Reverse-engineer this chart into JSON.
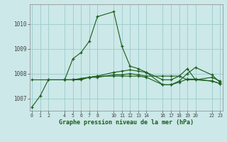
{
  "xlabel": "Graphe pression niveau de la mer (hPa)",
  "bg_color": "#cce8e8",
  "line_color": "#1a5c1a",
  "grid_color": "#99cccc",
  "ylim": [
    1006.5,
    1010.8
  ],
  "xlim": [
    -0.3,
    23.3
  ],
  "yticks": [
    1007,
    1008,
    1009,
    1010
  ],
  "xtick_positions": [
    0,
    1,
    2,
    4,
    5,
    6,
    7,
    8,
    10,
    11,
    12,
    13,
    14,
    16,
    17,
    18,
    19,
    20,
    22,
    23
  ],
  "xtick_labels": [
    "0",
    "1",
    "2",
    "4",
    "5",
    "6",
    "7",
    "8",
    "10",
    "11",
    "12",
    "13",
    "14",
    "16",
    "17",
    "18",
    "19",
    "20",
    "22",
    "23"
  ],
  "series": [
    {
      "x": [
        0,
        1,
        2,
        4,
        5,
        6,
        7,
        8,
        10,
        11,
        12,
        13,
        14,
        16,
        17,
        18,
        19,
        20,
        22,
        23
      ],
      "y": [
        1006.65,
        1007.1,
        1007.75,
        1007.75,
        1008.6,
        1008.85,
        1009.3,
        1010.3,
        1010.5,
        1009.1,
        1008.3,
        1008.2,
        1008.05,
        1007.75,
        1007.75,
        1007.9,
        1008.2,
        1007.75,
        1007.85,
        1007.7
      ]
    },
    {
      "x": [
        0,
        2,
        4,
        5,
        6,
        7,
        8,
        10,
        11,
        12,
        13,
        14,
        16,
        17,
        18,
        19,
        20,
        22,
        23
      ],
      "y": [
        1007.75,
        1007.75,
        1007.75,
        1007.75,
        1007.75,
        1007.85,
        1007.85,
        1007.95,
        1007.95,
        1008.0,
        1007.95,
        1007.9,
        1007.9,
        1007.9,
        1007.9,
        1007.75,
        1007.75,
        1007.7,
        1007.6
      ]
    },
    {
      "x": [
        4,
        5,
        6,
        7,
        8,
        10,
        11,
        12,
        13,
        14,
        16,
        17,
        18,
        19,
        20,
        22,
        23
      ],
      "y": [
        1007.75,
        1007.75,
        1007.8,
        1007.85,
        1007.9,
        1008.05,
        1008.1,
        1008.15,
        1008.1,
        1008.05,
        1007.55,
        1007.55,
        1007.7,
        1008.0,
        1008.25,
        1007.95,
        1007.65
      ]
    },
    {
      "x": [
        4,
        5,
        6,
        7,
        8,
        10,
        11,
        12,
        13,
        14,
        16,
        17,
        18,
        19,
        20,
        22,
        23
      ],
      "y": [
        1007.75,
        1007.75,
        1007.8,
        1007.85,
        1007.9,
        1007.9,
        1007.9,
        1007.9,
        1007.9,
        1007.85,
        1007.55,
        1007.55,
        1007.65,
        1007.78,
        1007.78,
        1007.7,
        1007.6
      ]
    }
  ]
}
